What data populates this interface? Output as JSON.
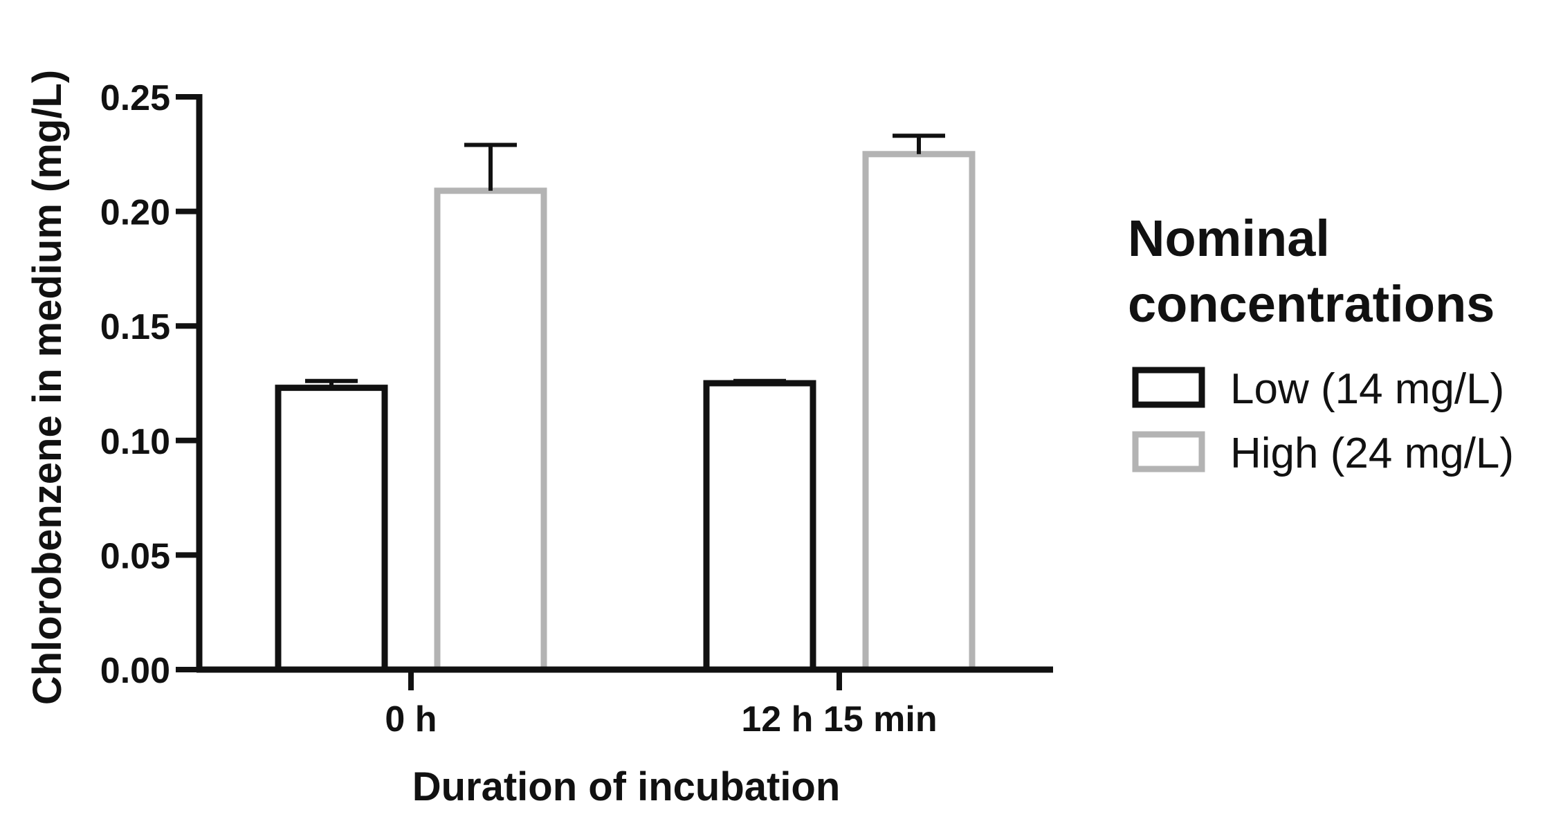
{
  "chart_data": {
    "type": "bar",
    "title": "",
    "xlabel": "Duration of incubation",
    "ylabel": "Chlorobenzene in medium (mg/L)",
    "categories": [
      "0 h",
      "12 h 15 min"
    ],
    "ylim": [
      0,
      0.25
    ],
    "yticks": [
      0.0,
      0.05,
      0.1,
      0.15,
      0.2,
      0.25
    ],
    "ytick_labels": [
      "0.00",
      "0.05",
      "0.10",
      "0.15",
      "0.20",
      "0.25"
    ],
    "series": [
      {
        "name": "Low (14 mg/L)",
        "color": "#111111",
        "values": [
          0.123,
          0.125
        ],
        "errors": [
          0.003,
          0.001
        ]
      },
      {
        "name": "High (24 mg/L)",
        "color": "#b3b3b3",
        "values": [
          0.209,
          0.225
        ],
        "errors": [
          0.02,
          0.008
        ]
      }
    ],
    "legend": {
      "title_lines": [
        "Nominal",
        "concentrations"
      ],
      "position": "right"
    },
    "grid": false
  }
}
